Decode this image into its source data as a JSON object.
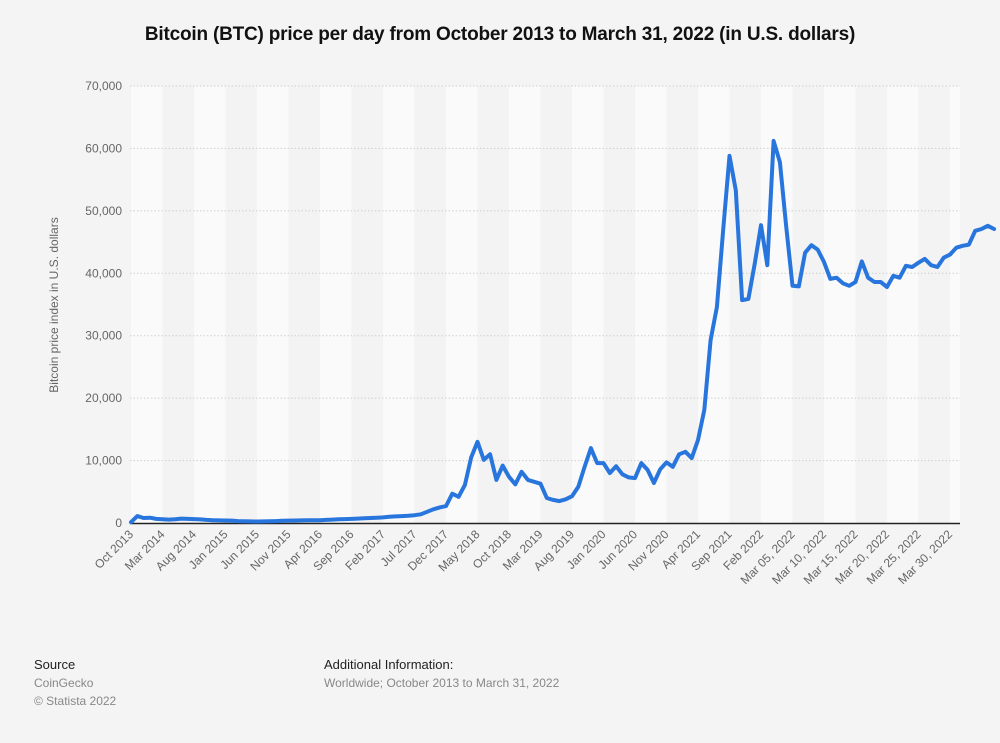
{
  "chart_data": {
    "type": "line",
    "title": "Bitcoin (BTC) price per day from October 2013 to March 31, 2022 (in U.S. dollars)",
    "xlabel": "",
    "ylabel": "Bitcoin price index in U.S. dollars",
    "ylim": [
      0,
      70000
    ],
    "yticks": [
      0,
      10000,
      20000,
      30000,
      40000,
      50000,
      60000,
      70000
    ],
    "ytick_labels": [
      "0",
      "10,000",
      "20,000",
      "30,000",
      "40,000",
      "50,000",
      "60,000",
      "70,000"
    ],
    "grid": true,
    "line_color": "#2876dd",
    "x_tick_labels": [
      "Oct 2013",
      "Mar 2014",
      "Aug 2014",
      "Jan 2015",
      "Jun 2015",
      "Nov 2015",
      "Apr 2016",
      "Sep 2016",
      "Feb 2017",
      "Jul 2017",
      "Dec 2017",
      "May 2018",
      "Oct 2018",
      "Mar 2019",
      "Aug 2019",
      "Jan 2020",
      "Jun 2020",
      "Nov 2020",
      "Apr 2021",
      "Sep 2021",
      "Feb 2022",
      "Mar 05, 2022",
      "Mar 10, 2022",
      "Mar 15, 2022",
      "Mar 20, 2022",
      "Mar 25, 2022",
      "Mar 30, 2022"
    ],
    "points_per_tick": 5,
    "series": [
      {
        "name": "Bitcoin price",
        "values": [
          130,
          1100,
          800,
          850,
          650,
          600,
          550,
          600,
          700,
          650,
          620,
          580,
          500,
          450,
          420,
          400,
          380,
          300,
          280,
          250,
          240,
          260,
          270,
          300,
          350,
          380,
          400,
          420,
          430,
          450,
          450,
          500,
          550,
          600,
          620,
          650,
          700,
          750,
          800,
          850,
          900,
          1000,
          1050,
          1100,
          1150,
          1250,
          1400,
          1800,
          2200,
          2500,
          2700,
          4700,
          4200,
          6100,
          10500,
          13000,
          10100,
          11000,
          6900,
          9200,
          7400,
          6200,
          8200,
          6900,
          6600,
          6300,
          4000,
          3700,
          3500,
          3800,
          4300,
          5800,
          9000,
          12000,
          9600,
          9600,
          8000,
          9100,
          7800,
          7300,
          7200,
          9600,
          8500,
          6400,
          8600,
          9700,
          9000,
          11000,
          11400,
          10400,
          13300,
          18100,
          29300,
          34600,
          47000,
          58800,
          53300,
          35700,
          35900,
          41500,
          47700,
          41300,
          61200,
          57800,
          47500,
          38000,
          37900,
          43300,
          44500,
          43800,
          41800,
          39100,
          39300,
          38400,
          38000,
          38600,
          41900,
          39300,
          38600,
          38600,
          37800,
          39600,
          39300,
          41200,
          41000,
          41700,
          42300,
          41300,
          41000,
          42500,
          43000,
          44100,
          44400,
          44600,
          46800,
          47100,
          47600,
          47100
        ]
      }
    ],
    "source": {
      "heading": "Source",
      "lines": [
        "CoinGecko",
        "© Statista 2022"
      ]
    },
    "additional_info": {
      "heading": "Additional Information:",
      "text": "Worldwide; October 2013 to March 31, 2022"
    }
  }
}
